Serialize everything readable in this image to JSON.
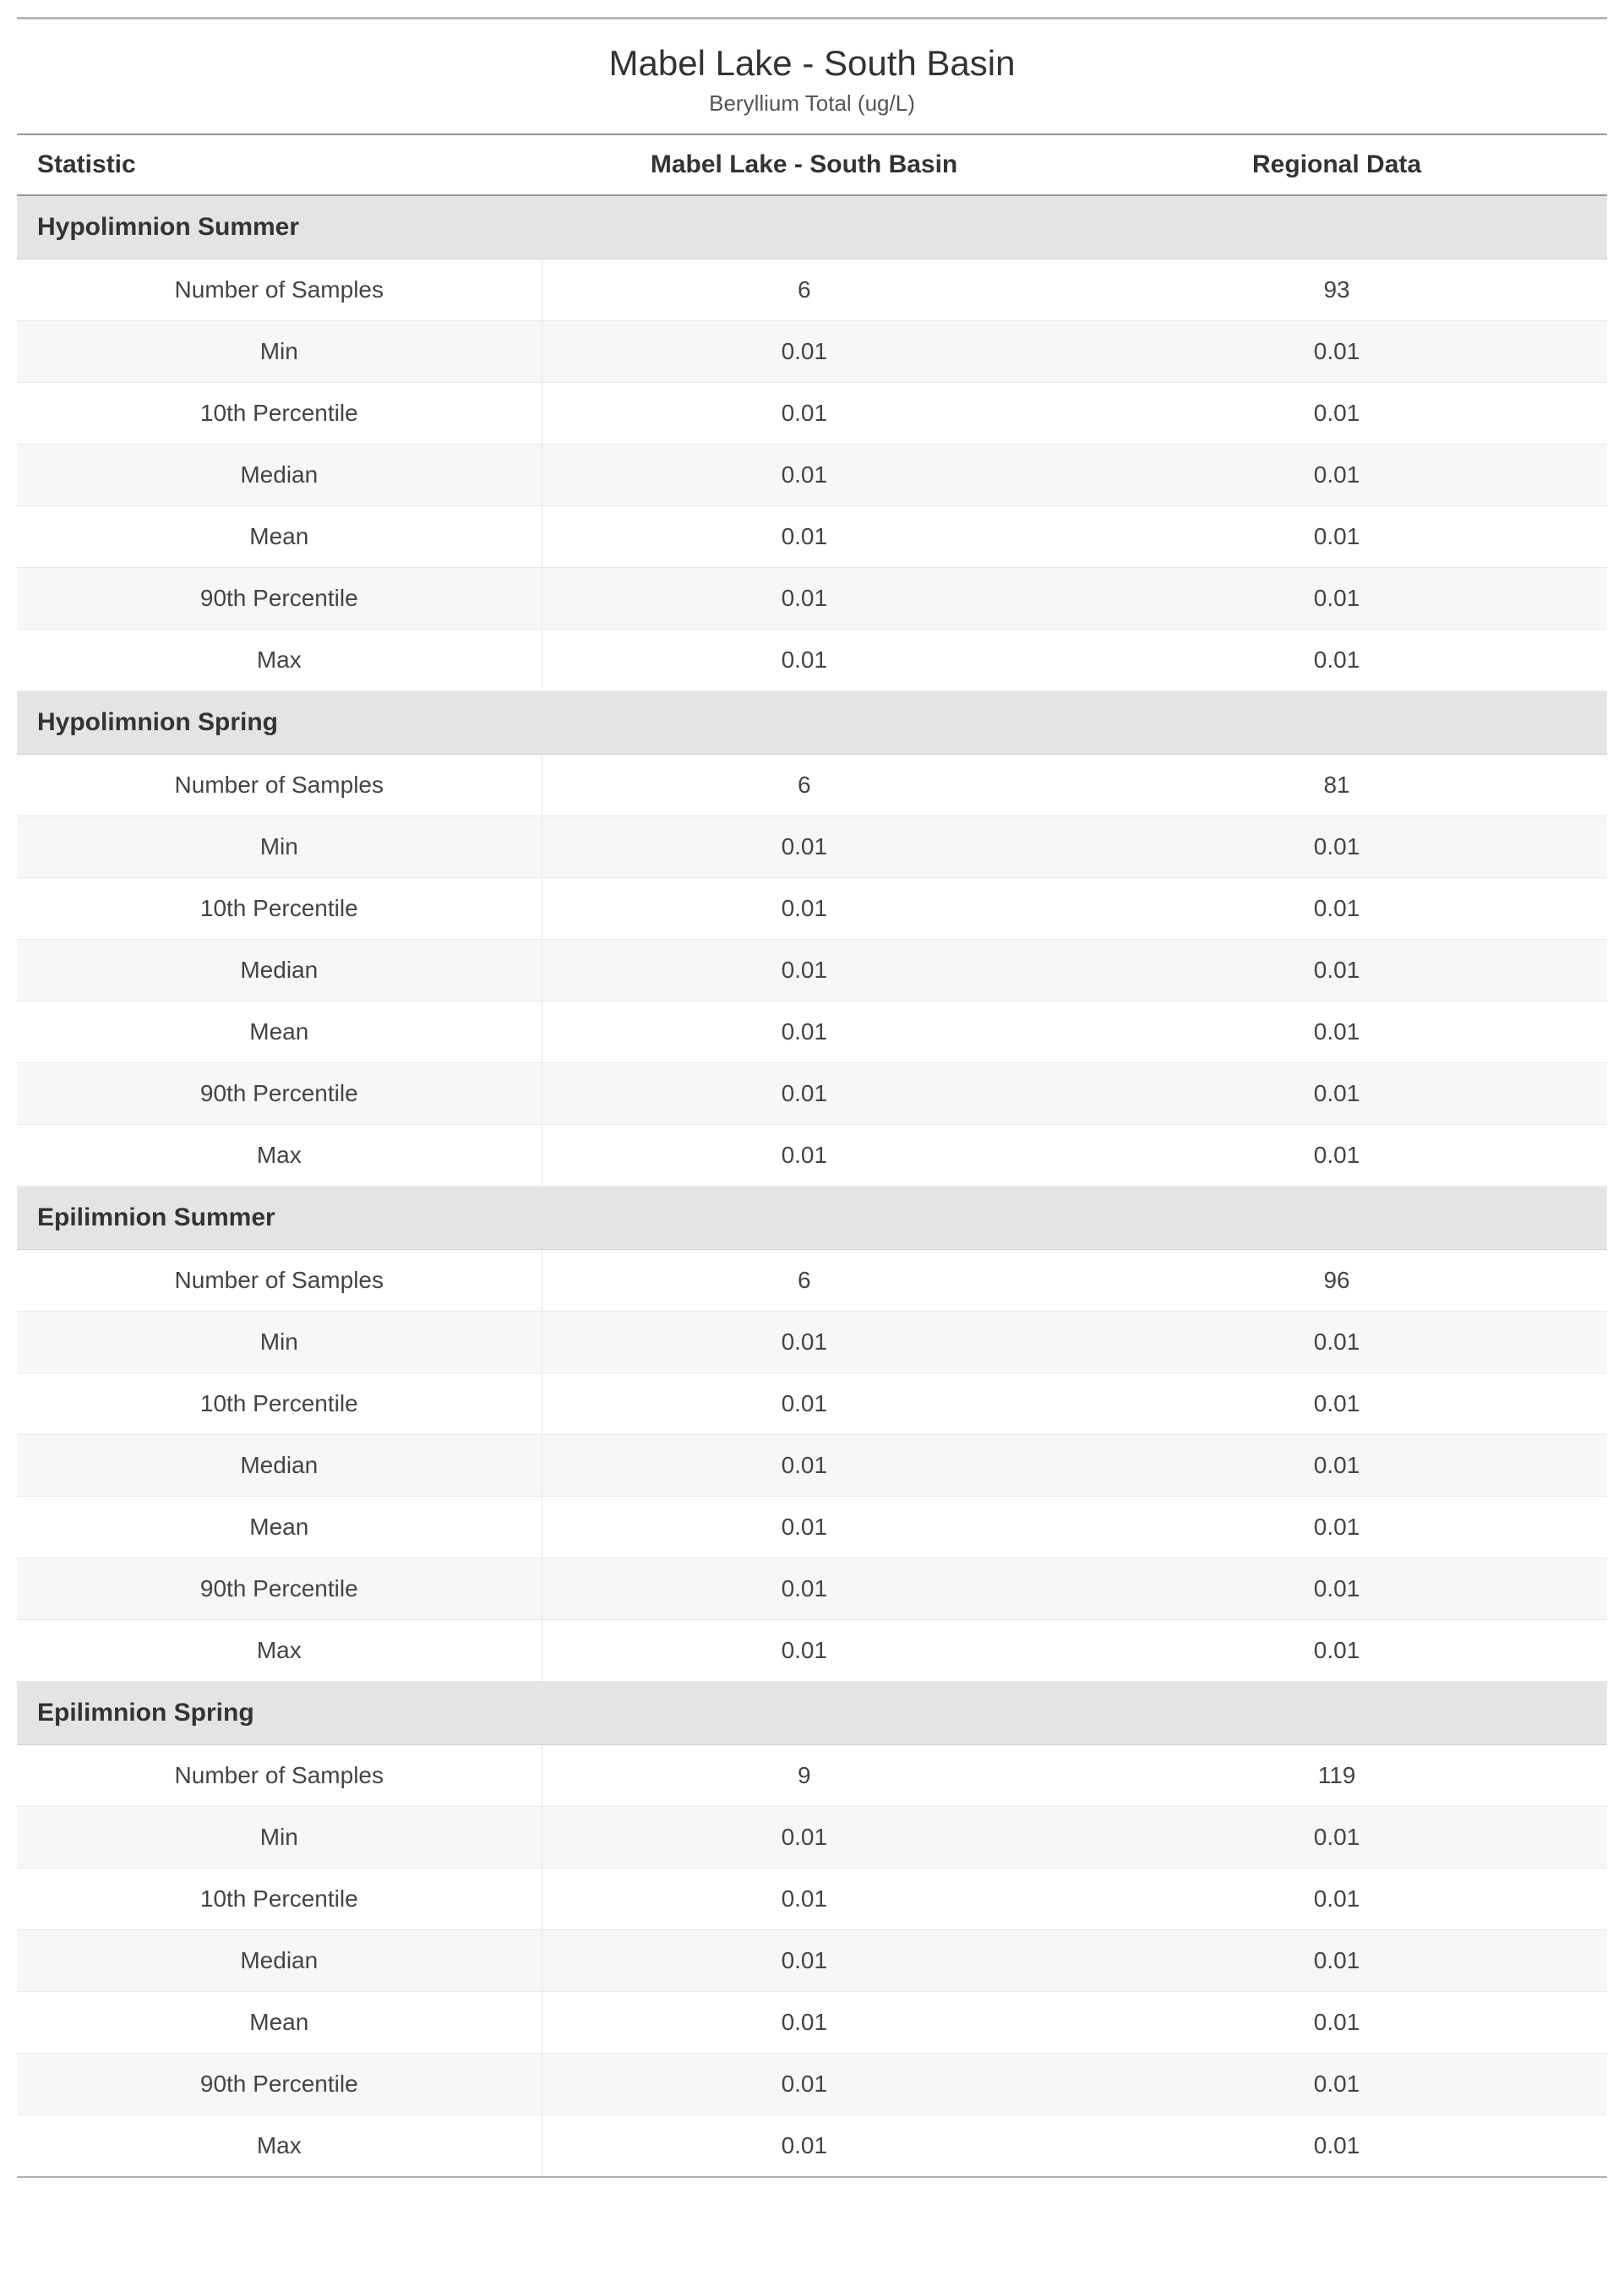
{
  "title": "Mabel Lake - South Basin",
  "subtitle": "Beryllium Total (ug/L)",
  "columns": {
    "stat": "Statistic",
    "local": "Mabel Lake - South Basin",
    "regional": "Regional Data"
  },
  "sections": [
    {
      "name": "Hypolimnion Summer",
      "rows": [
        {
          "stat": "Number of Samples",
          "local": "6",
          "regional": "93"
        },
        {
          "stat": "Min",
          "local": "0.01",
          "regional": "0.01"
        },
        {
          "stat": "10th Percentile",
          "local": "0.01",
          "regional": "0.01"
        },
        {
          "stat": "Median",
          "local": "0.01",
          "regional": "0.01"
        },
        {
          "stat": "Mean",
          "local": "0.01",
          "regional": "0.01"
        },
        {
          "stat": "90th Percentile",
          "local": "0.01",
          "regional": "0.01"
        },
        {
          "stat": "Max",
          "local": "0.01",
          "regional": "0.01"
        }
      ]
    },
    {
      "name": "Hypolimnion Spring",
      "rows": [
        {
          "stat": "Number of Samples",
          "local": "6",
          "regional": "81"
        },
        {
          "stat": "Min",
          "local": "0.01",
          "regional": "0.01"
        },
        {
          "stat": "10th Percentile",
          "local": "0.01",
          "regional": "0.01"
        },
        {
          "stat": "Median",
          "local": "0.01",
          "regional": "0.01"
        },
        {
          "stat": "Mean",
          "local": "0.01",
          "regional": "0.01"
        },
        {
          "stat": "90th Percentile",
          "local": "0.01",
          "regional": "0.01"
        },
        {
          "stat": "Max",
          "local": "0.01",
          "regional": "0.01"
        }
      ]
    },
    {
      "name": "Epilimnion Summer",
      "rows": [
        {
          "stat": "Number of Samples",
          "local": "6",
          "regional": "96"
        },
        {
          "stat": "Min",
          "local": "0.01",
          "regional": "0.01"
        },
        {
          "stat": "10th Percentile",
          "local": "0.01",
          "regional": "0.01"
        },
        {
          "stat": "Median",
          "local": "0.01",
          "regional": "0.01"
        },
        {
          "stat": "Mean",
          "local": "0.01",
          "regional": "0.01"
        },
        {
          "stat": "90th Percentile",
          "local": "0.01",
          "regional": "0.01"
        },
        {
          "stat": "Max",
          "local": "0.01",
          "regional": "0.01"
        }
      ]
    },
    {
      "name": "Epilimnion Spring",
      "rows": [
        {
          "stat": "Number of Samples",
          "local": "9",
          "regional": "119"
        },
        {
          "stat": "Min",
          "local": "0.01",
          "regional": "0.01"
        },
        {
          "stat": "10th Percentile",
          "local": "0.01",
          "regional": "0.01"
        },
        {
          "stat": "Median",
          "local": "0.01",
          "regional": "0.01"
        },
        {
          "stat": "Mean",
          "local": "0.01",
          "regional": "0.01"
        },
        {
          "stat": "90th Percentile",
          "local": "0.01",
          "regional": "0.01"
        },
        {
          "stat": "Max",
          "local": "0.01",
          "regional": "0.01"
        }
      ]
    }
  ]
}
